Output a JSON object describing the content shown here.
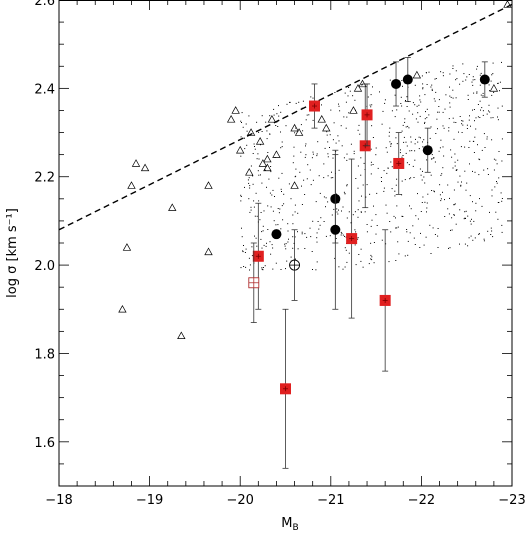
{
  "chart_data": {
    "type": "scatter",
    "title": "",
    "xlabel": "M",
    "xlabel_sub": "B",
    "ylabel": "log σ [km s⁻¹]",
    "xlim": [
      -18,
      -23
    ],
    "ylim": [
      1.5,
      2.6
    ],
    "x_ticks": [
      -18,
      -19,
      -20,
      -21,
      -22,
      -23
    ],
    "x_tick_labels": [
      "−18",
      "−19",
      "−20",
      "−21",
      "−22",
      "−23"
    ],
    "y_ticks": [
      1.6,
      1.8,
      2.0,
      2.2,
      2.4,
      2.6
    ],
    "y_tick_labels": [
      "1.6",
      "1.8",
      "2.0",
      "2.2",
      "2.4",
      "2.6"
    ],
    "grid": false,
    "colors": {
      "axes": "#000000",
      "red_square": "#e02020",
      "dots": "#000000",
      "open_square": "#b03030"
    },
    "dashed_line": {
      "x": [
        -18,
        -23
      ],
      "y": [
        2.08,
        2.59
      ]
    },
    "series": [
      {
        "marker": "triangle-open",
        "x": [
          -18.7,
          -18.75,
          -18.8,
          -18.85,
          -18.95,
          -19.25,
          -19.35,
          -19.65,
          -19.65,
          -19.9,
          -19.95,
          -20.0,
          -20.1,
          -20.12,
          -20.22,
          -20.25,
          -20.3,
          -20.3,
          -20.35,
          -20.4,
          -20.6,
          -20.6,
          -20.65,
          -20.9,
          -20.95,
          -21.25,
          -21.3,
          -21.35,
          -21.95,
          -22.8,
          -22.95
        ],
        "y": [
          1.9,
          2.04,
          2.18,
          2.23,
          2.22,
          2.13,
          1.84,
          2.18,
          2.03,
          2.33,
          2.35,
          2.26,
          2.21,
          2.3,
          2.28,
          2.23,
          2.24,
          2.22,
          2.33,
          2.25,
          2.31,
          2.18,
          2.3,
          2.33,
          2.31,
          2.35,
          2.4,
          2.41,
          2.43,
          2.4,
          2.59
        ]
      },
      {
        "marker": "circle-filled",
        "x": [
          -20.4,
          -21.05,
          -21.05,
          -21.72,
          -21.85,
          -22.07,
          -22.7
        ],
        "y": [
          2.07,
          2.15,
          2.08,
          2.41,
          2.42,
          2.26,
          2.42
        ],
        "yerr": [
          0,
          0.1,
          0.18,
          0.05,
          0.05,
          0.05,
          0.04
        ]
      },
      {
        "marker": "square-filled",
        "x": [
          -20.2,
          -20.5,
          -20.82,
          -21.23,
          -21.38,
          -21.4,
          -21.6,
          -21.75
        ],
        "y": [
          2.02,
          1.72,
          2.36,
          2.06,
          2.27,
          2.34,
          1.92,
          2.23
        ],
        "yerr": [
          0.12,
          0.18,
          0.05,
          0.18,
          0.14,
          0.07,
          0.16,
          0.07
        ]
      },
      {
        "marker": "circle-cross-open",
        "x": [
          -20.6
        ],
        "y": [
          2.0
        ],
        "yerr": [
          0.08
        ]
      },
      {
        "marker": "square-cross-open",
        "x": [
          -20.15
        ],
        "y": [
          1.96
        ],
        "yerr": [
          0.09
        ]
      }
    ],
    "background_points": "dense cloud of small dots spanning MB ≈ −20.0 to −22.9, log σ ≈ 2.0 to 2.45"
  }
}
